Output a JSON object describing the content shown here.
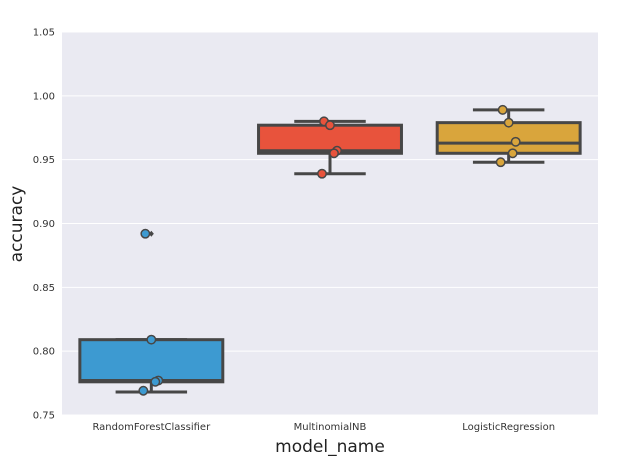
{
  "chart_data": {
    "type": "box",
    "xlabel": "model_name",
    "ylabel": "accuracy",
    "ylim": [
      0.75,
      1.05
    ],
    "yticks": [
      "0.75",
      "0.80",
      "0.85",
      "0.90",
      "0.95",
      "1.00",
      "1.05"
    ],
    "grid": true,
    "background": "#eaeaf2",
    "categories": [
      "RandomForestClassifier",
      "MultinomialNB",
      "LogisticRegression"
    ],
    "series": [
      {
        "category": "RandomForestClassifier",
        "color": "#3d9ad1",
        "q1": 0.776,
        "median": 0.777,
        "q3": 0.809,
        "whisker_low": 0.768,
        "whisker_high": 0.809,
        "outliers": [
          0.892
        ],
        "points": [
          0.892,
          0.809,
          0.777,
          0.776,
          0.769
        ]
      },
      {
        "category": "MultinomialNB",
        "color": "#e8533c",
        "q1": 0.955,
        "median": 0.957,
        "q3": 0.977,
        "whisker_low": 0.939,
        "whisker_high": 0.98,
        "outliers": [],
        "points": [
          0.98,
          0.977,
          0.957,
          0.955,
          0.939
        ]
      },
      {
        "category": "LogisticRegression",
        "color": "#d9a53c",
        "q1": 0.955,
        "median": 0.963,
        "q3": 0.979,
        "whisker_low": 0.948,
        "whisker_high": 0.989,
        "outliers": [],
        "points": [
          0.989,
          0.979,
          0.964,
          0.955,
          0.948
        ]
      }
    ]
  }
}
